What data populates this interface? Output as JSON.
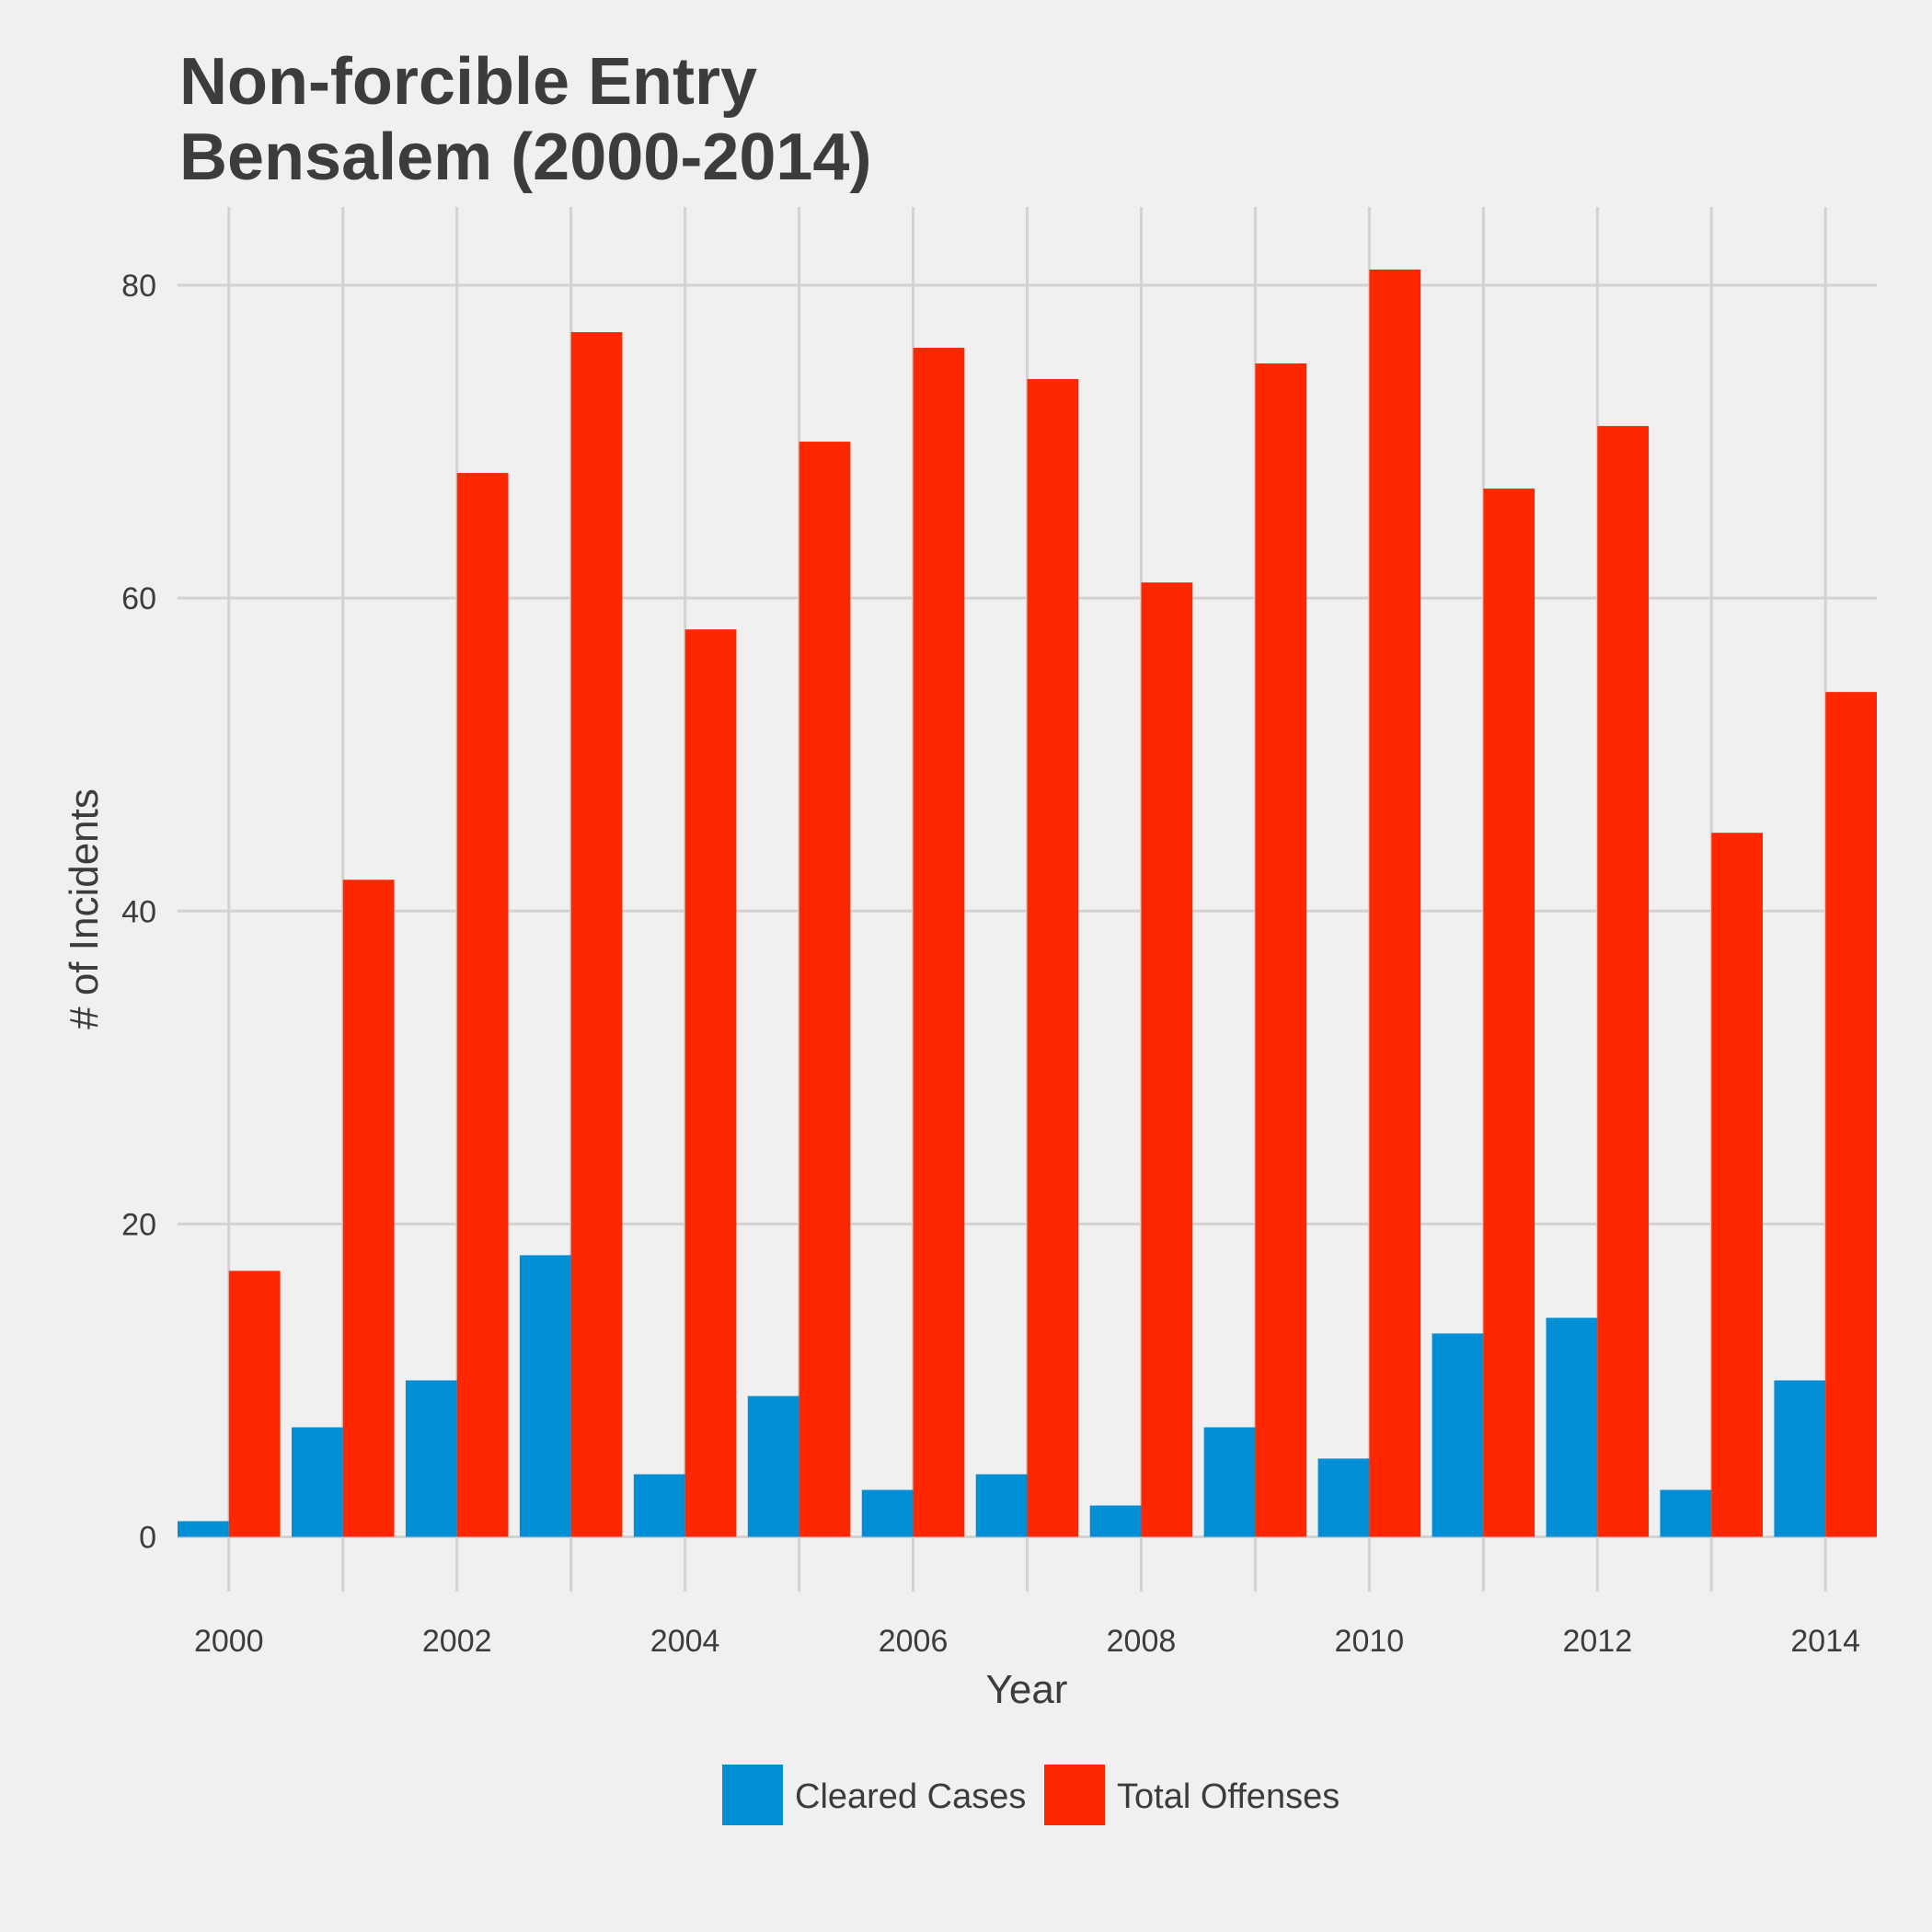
{
  "chart_data": {
    "type": "bar",
    "title_lines": [
      "Non-forcible Entry",
      "Bensalem (2000-2014)"
    ],
    "xlabel": "Year",
    "ylabel": "# of Incidents",
    "x": [
      2000,
      2001,
      2002,
      2003,
      2004,
      2005,
      2006,
      2007,
      2008,
      2009,
      2010,
      2011,
      2012,
      2013,
      2014
    ],
    "x_ticks": [
      2000,
      2002,
      2004,
      2006,
      2008,
      2010,
      2012,
      2014
    ],
    "xlim": [
      1999.55,
      2014.45
    ],
    "y_ticks": [
      0,
      20,
      40,
      60,
      80
    ],
    "ylim": [
      -3.5,
      85
    ],
    "grid": true,
    "legend_position": "bottom",
    "series": [
      {
        "name": "Cleared Cases",
        "color": "#008fd5",
        "values": [
          1,
          7,
          10,
          18,
          4,
          9,
          3,
          4,
          2,
          7,
          5,
          13,
          14,
          3,
          10
        ]
      },
      {
        "name": "Total Offenses",
        "color": "#ff2700",
        "values": [
          17,
          42,
          68,
          77,
          58,
          70,
          76,
          74,
          61,
          75,
          81,
          67,
          71,
          45,
          54
        ]
      }
    ]
  }
}
